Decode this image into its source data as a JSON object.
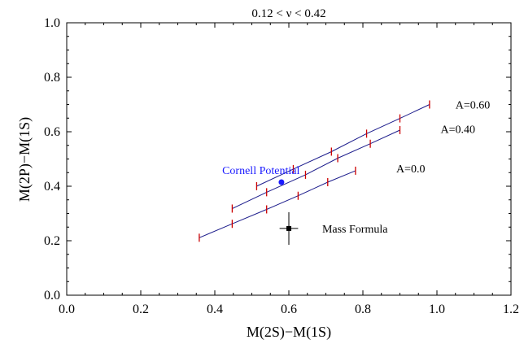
{
  "chart_data": {
    "type": "line",
    "title": "0.12 < ν < 0.42",
    "xlabel": "M(2S)−M(1S)",
    "ylabel": "M(2P)−M(1S)",
    "xlim": [
      0.0,
      1.2
    ],
    "ylim": [
      0.0,
      1.0
    ],
    "x_ticks": [
      0.0,
      0.2,
      0.4,
      0.6,
      0.8,
      1.0,
      1.2
    ],
    "y_ticks": [
      0.0,
      0.2,
      0.4,
      0.6,
      0.8,
      1.0
    ],
    "x_tick_labels": [
      "0.0",
      "0.2",
      "0.4",
      "0.6",
      "0.8",
      "1.0",
      "1.2"
    ],
    "y_tick_labels": [
      "0.0",
      "0.2",
      "0.4",
      "0.6",
      "0.8",
      "1.0"
    ],
    "grid": false,
    "line_color": "#1c1c8c",
    "tick_mark_color": "#cc0000",
    "series": [
      {
        "name": "A=0.60",
        "x": [
          0.513,
          0.612,
          0.715,
          0.81,
          0.9,
          0.98
        ],
        "y": [
          0.4,
          0.463,
          0.527,
          0.593,
          0.649,
          0.7
        ]
      },
      {
        "name": "A=0.40",
        "x": [
          0.447,
          0.54,
          0.645,
          0.732,
          0.82,
          0.9
        ],
        "y": [
          0.318,
          0.378,
          0.442,
          0.503,
          0.556,
          0.606
        ]
      },
      {
        "name": "A=0.0",
        "x": [
          0.358,
          0.447,
          0.54,
          0.625,
          0.705,
          0.78
        ],
        "y": [
          0.211,
          0.262,
          0.315,
          0.365,
          0.415,
          0.457
        ]
      }
    ],
    "points": [
      {
        "name": "Cornell Potential",
        "x": 0.58,
        "y": 0.415,
        "color": "#1a1aff"
      },
      {
        "name": "Mass Formula",
        "x": 0.6,
        "y": 0.245,
        "xerr": 0.025,
        "yerr": 0.06,
        "color": "#000000"
      }
    ],
    "annotations": [
      {
        "text": "A=0.60",
        "x": 1.05,
        "y": 0.7
      },
      {
        "text": "A=0.40",
        "x": 1.01,
        "y": 0.61
      },
      {
        "text": "A=0.0",
        "x": 0.89,
        "y": 0.465
      },
      {
        "text": "Cornell Potential",
        "x": 0.42,
        "y": 0.46
      },
      {
        "text": "Mass Formula",
        "x": 0.69,
        "y": 0.245
      }
    ]
  }
}
